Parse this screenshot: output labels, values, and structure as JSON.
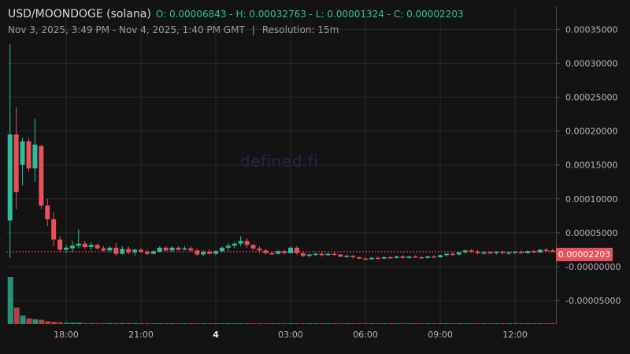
{
  "header": {
    "pair": "USD/MOONDOGE (solana)",
    "ohlc": "O: 0.00006843 - H: 0.00032763 - L: 0.00001324 - C: 0.00002203",
    "range": "Nov 3, 2025, 3:49 PM - Nov 4, 2025, 1:40 PM GMT",
    "separator": "|",
    "resolution": "Resolution: 15m"
  },
  "watermark": "defined.fi",
  "last_price_label": "0.00002203",
  "colors": {
    "up": "#2bbf9e",
    "down": "#e8505b",
    "grid": "#2a2a2a",
    "background": "#131313"
  },
  "chart_data": {
    "type": "candlestick",
    "title": "USD/MOONDOGE (solana)",
    "interval": "15m",
    "last_close": 2.203e-05,
    "ylim": [
      -8e-05,
      0.00038
    ],
    "y_ticks": [
      {
        "value": 0.00035,
        "label": "0.00035000"
      },
      {
        "value": 0.0003,
        "label": "0.00030000"
      },
      {
        "value": 0.00025,
        "label": "0.00025000"
      },
      {
        "value": 0.0002,
        "label": "0.00020000"
      },
      {
        "value": 0.00015,
        "label": "0.00015000"
      },
      {
        "value": 0.0001,
        "label": "0.00010000"
      },
      {
        "value": 5e-05,
        "label": "0.00005000"
      },
      {
        "value": 0.0,
        "label": "-0.00000000"
      },
      {
        "value": -5e-05,
        "label": "-0.00005000"
      }
    ],
    "x_ticks": [
      {
        "hour": 18,
        "label": "18:00"
      },
      {
        "hour": 21,
        "label": "21:00"
      },
      {
        "hour": 24,
        "label": "4"
      },
      {
        "hour": 27,
        "label": "03:00"
      },
      {
        "hour": 30,
        "label": "06:00"
      },
      {
        "hour": 33,
        "label": "09:00"
      },
      {
        "hour": 36,
        "label": "12:00"
      }
    ],
    "candles": [
      {
        "hour": 15.75,
        "o": 6.8e-05,
        "h": 0.000328,
        "l": 1.3e-05,
        "c": 0.000195,
        "v": 1.0
      },
      {
        "hour": 16.0,
        "o": 0.000195,
        "h": 0.000235,
        "l": 8.5e-05,
        "c": 0.00011,
        "v": 0.35
      },
      {
        "hour": 16.25,
        "o": 0.00015,
        "h": 0.00019,
        "l": 0.00012,
        "c": 0.000185,
        "v": 0.18
      },
      {
        "hour": 16.5,
        "o": 0.000185,
        "h": 0.00019,
        "l": 0.00014,
        "c": 0.000145,
        "v": 0.12
      },
      {
        "hour": 16.75,
        "o": 0.000145,
        "h": 0.000218,
        "l": 0.000125,
        "c": 0.00018,
        "v": 0.1
      },
      {
        "hour": 17.0,
        "o": 0.000178,
        "h": 0.00018,
        "l": 8.5e-05,
        "c": 9e-05,
        "v": 0.09
      },
      {
        "hour": 17.25,
        "o": 9e-05,
        "h": 0.0001,
        "l": 6e-05,
        "c": 7e-05,
        "v": 0.06
      },
      {
        "hour": 17.5,
        "o": 7e-05,
        "h": 8e-05,
        "l": 3e-05,
        "c": 4e-05,
        "v": 0.05
      },
      {
        "hour": 17.75,
        "o": 4e-05,
        "h": 4.5e-05,
        "l": 2.2e-05,
        "c": 2.5e-05,
        "v": 0.04
      },
      {
        "hour": 18.0,
        "o": 2.5e-05,
        "h": 3.2e-05,
        "l": 2e-05,
        "c": 2.8e-05,
        "v": 0.03
      },
      {
        "hour": 18.25,
        "o": 2.7e-05,
        "h": 3.8e-05,
        "l": 2.2e-05,
        "c": 3.1e-05,
        "v": 0.03
      },
      {
        "hour": 18.5,
        "o": 3.1e-05,
        "h": 5.5e-05,
        "l": 2.7e-05,
        "c": 3.4e-05,
        "v": 0.03
      },
      {
        "hour": 18.75,
        "o": 3.4e-05,
        "h": 3.8e-05,
        "l": 2.6e-05,
        "c": 2.9e-05,
        "v": 0.02
      },
      {
        "hour": 19.0,
        "o": 2.9e-05,
        "h": 3.6e-05,
        "l": 2.4e-05,
        "c": 3.2e-05,
        "v": 0.02
      },
      {
        "hour": 19.25,
        "o": 3.2e-05,
        "h": 3.4e-05,
        "l": 2.5e-05,
        "c": 2.7e-05,
        "v": 0.02
      },
      {
        "hour": 19.5,
        "o": 2.7e-05,
        "h": 3e-05,
        "l": 2.2e-05,
        "c": 2.4e-05,
        "v": 0.02
      },
      {
        "hour": 19.75,
        "o": 2.4e-05,
        "h": 3e-05,
        "l": 2.2e-05,
        "c": 2.8e-05,
        "v": 0.02
      },
      {
        "hour": 20.0,
        "o": 2.8e-05,
        "h": 3.5e-05,
        "l": 1.6e-05,
        "c": 1.9e-05,
        "v": 0.02
      },
      {
        "hour": 20.25,
        "o": 1.9e-05,
        "h": 3e-05,
        "l": 1.8e-05,
        "c": 2.6e-05,
        "v": 0.02
      },
      {
        "hour": 20.5,
        "o": 2.6e-05,
        "h": 3e-05,
        "l": 1.8e-05,
        "c": 2.1e-05,
        "v": 0.02
      },
      {
        "hour": 20.75,
        "o": 2.1e-05,
        "h": 2.7e-05,
        "l": 1.6e-05,
        "c": 2.5e-05,
        "v": 0.02
      },
      {
        "hour": 21.0,
        "o": 2.5e-05,
        "h": 2.7e-05,
        "l": 2e-05,
        "c": 2.2e-05,
        "v": 0.01
      },
      {
        "hour": 21.25,
        "o": 2.2e-05,
        "h": 2.5e-05,
        "l": 1.7e-05,
        "c": 1.9e-05,
        "v": 0.01
      },
      {
        "hour": 21.5,
        "o": 1.9e-05,
        "h": 2.4e-05,
        "l": 1.8e-05,
        "c": 2.3e-05,
        "v": 0.01
      },
      {
        "hour": 21.75,
        "o": 2.2e-05,
        "h": 3e-05,
        "l": 2.1e-05,
        "c": 2.8e-05,
        "v": 0.01
      },
      {
        "hour": 22.0,
        "o": 2.8e-05,
        "h": 3e-05,
        "l": 2.3e-05,
        "c": 2.4e-05,
        "v": 0.01
      },
      {
        "hour": 22.25,
        "o": 2.4e-05,
        "h": 3e-05,
        "l": 2.2e-05,
        "c": 2.8e-05,
        "v": 0.01
      },
      {
        "hour": 22.5,
        "o": 2.8e-05,
        "h": 3e-05,
        "l": 2.3e-05,
        "c": 2.5e-05,
        "v": 0.01
      },
      {
        "hour": 22.75,
        "o": 2.5e-05,
        "h": 3e-05,
        "l": 2.4e-05,
        "c": 2.7e-05,
        "v": 0.01
      },
      {
        "hour": 23.0,
        "o": 2.7e-05,
        "h": 3e-05,
        "l": 2.2e-05,
        "c": 2.4e-05,
        "v": 0.01
      },
      {
        "hour": 23.25,
        "o": 2.4e-05,
        "h": 2.7e-05,
        "l": 1.6e-05,
        "c": 1.8e-05,
        "v": 0.01
      },
      {
        "hour": 23.5,
        "o": 1.8e-05,
        "h": 2.4e-05,
        "l": 1.6e-05,
        "c": 2.2e-05,
        "v": 0.01
      },
      {
        "hour": 23.75,
        "o": 2.2e-05,
        "h": 2.6e-05,
        "l": 1.8e-05,
        "c": 1.9e-05,
        "v": 0.01
      },
      {
        "hour": 24.0,
        "o": 1.9e-05,
        "h": 2.5e-05,
        "l": 1.7e-05,
        "c": 2.3e-05,
        "v": 0.01
      },
      {
        "hour": 24.25,
        "o": 2.3e-05,
        "h": 3e-05,
        "l": 2.1e-05,
        "c": 2.8e-05,
        "v": 0.01
      },
      {
        "hour": 24.5,
        "o": 2.8e-05,
        "h": 3.5e-05,
        "l": 2.4e-05,
        "c": 3.1e-05,
        "v": 0.01
      },
      {
        "hour": 24.75,
        "o": 3.1e-05,
        "h": 3.6e-05,
        "l": 2.7e-05,
        "c": 3.4e-05,
        "v": 0.01
      },
      {
        "hour": 25.0,
        "o": 3.4e-05,
        "h": 4.5e-05,
        "l": 3e-05,
        "c": 3.8e-05,
        "v": 0.01
      },
      {
        "hour": 25.25,
        "o": 3.8e-05,
        "h": 4.2e-05,
        "l": 2.8e-05,
        "c": 3.2e-05,
        "v": 0.01
      },
      {
        "hour": 25.5,
        "o": 3.2e-05,
        "h": 3.4e-05,
        "l": 2.4e-05,
        "c": 2.7e-05,
        "v": 0.01
      },
      {
        "hour": 25.75,
        "o": 2.7e-05,
        "h": 3e-05,
        "l": 2e-05,
        "c": 2.4e-05,
        "v": 0.01
      },
      {
        "hour": 26.0,
        "o": 2.4e-05,
        "h": 2.6e-05,
        "l": 1.8e-05,
        "c": 2e-05,
        "v": 0.01
      },
      {
        "hour": 26.25,
        "o": 2e-05,
        "h": 2.2e-05,
        "l": 1.7e-05,
        "c": 1.9e-05,
        "v": 0.01
      },
      {
        "hour": 26.5,
        "o": 1.9e-05,
        "h": 2.5e-05,
        "l": 1.8e-05,
        "c": 2.3e-05,
        "v": 0.01
      },
      {
        "hour": 26.75,
        "o": 2.3e-05,
        "h": 2.5e-05,
        "l": 1.8e-05,
        "c": 2e-05,
        "v": 0.01
      },
      {
        "hour": 27.0,
        "o": 2e-05,
        "h": 3e-05,
        "l": 1.9e-05,
        "c": 2.8e-05,
        "v": 0.01
      },
      {
        "hour": 27.25,
        "o": 2.8e-05,
        "h": 3e-05,
        "l": 1.8e-05,
        "c": 2e-05,
        "v": 0.01
      },
      {
        "hour": 27.5,
        "o": 2e-05,
        "h": 2.2e-05,
        "l": 1.4e-05,
        "c": 1.6e-05,
        "v": 0.01
      },
      {
        "hour": 27.75,
        "o": 1.6e-05,
        "h": 1.9e-05,
        "l": 1.4e-05,
        "c": 1.8e-05,
        "v": 0.01
      },
      {
        "hour": 28.0,
        "o": 1.8e-05,
        "h": 2e-05,
        "l": 1.6e-05,
        "c": 1.9e-05,
        "v": 0.01
      },
      {
        "hour": 28.25,
        "o": 1.9e-05,
        "h": 2.1e-05,
        "l": 1.5e-05,
        "c": 1.7e-05,
        "v": 0.01
      },
      {
        "hour": 28.5,
        "o": 1.7e-05,
        "h": 2e-05,
        "l": 1.6e-05,
        "c": 1.9e-05,
        "v": 0.01
      },
      {
        "hour": 28.75,
        "o": 1.9e-05,
        "h": 2.2e-05,
        "l": 1.6e-05,
        "c": 1.8e-05,
        "v": 0.01
      },
      {
        "hour": 29.0,
        "o": 1.8e-05,
        "h": 1.9e-05,
        "l": 1.4e-05,
        "c": 1.5e-05,
        "v": 0.01
      },
      {
        "hour": 29.25,
        "o": 1.5e-05,
        "h": 1.8e-05,
        "l": 1.3e-05,
        "c": 1.6e-05,
        "v": 0.01
      },
      {
        "hour": 29.5,
        "o": 1.6e-05,
        "h": 1.7e-05,
        "l": 1.2e-05,
        "c": 1.4e-05,
        "v": 0.01
      },
      {
        "hour": 29.75,
        "o": 1.4e-05,
        "h": 1.5e-05,
        "l": 1.1e-05,
        "c": 1.2e-05,
        "v": 0.01
      },
      {
        "hour": 30.0,
        "o": 1.2e-05,
        "h": 1.4e-05,
        "l": 1e-05,
        "c": 1.1e-05,
        "v": 0.01
      },
      {
        "hour": 30.25,
        "o": 1.1e-05,
        "h": 1.4e-05,
        "l": 1e-05,
        "c": 1.3e-05,
        "v": 0.01
      },
      {
        "hour": 30.5,
        "o": 1.3e-05,
        "h": 1.5e-05,
        "l": 1.1e-05,
        "c": 1.2e-05,
        "v": 0.01
      },
      {
        "hour": 30.75,
        "o": 1.2e-05,
        "h": 1.5e-05,
        "l": 1.1e-05,
        "c": 1.4e-05,
        "v": 0.01
      },
      {
        "hour": 31.0,
        "o": 1.4e-05,
        "h": 1.6e-05,
        "l": 1.2e-05,
        "c": 1.3e-05,
        "v": 0.01
      },
      {
        "hour": 31.25,
        "o": 1.3e-05,
        "h": 1.6e-05,
        "l": 1.2e-05,
        "c": 1.5e-05,
        "v": 0.01
      },
      {
        "hour": 31.5,
        "o": 1.5e-05,
        "h": 1.7e-05,
        "l": 1.2e-05,
        "c": 1.3e-05,
        "v": 0.01
      },
      {
        "hour": 31.75,
        "o": 1.3e-05,
        "h": 1.6e-05,
        "l": 1.2e-05,
        "c": 1.5e-05,
        "v": 0.01
      },
      {
        "hour": 32.0,
        "o": 1.5e-05,
        "h": 1.7e-05,
        "l": 1.3e-05,
        "c": 1.4e-05,
        "v": 0.01
      },
      {
        "hour": 32.25,
        "o": 1.4e-05,
        "h": 1.6e-05,
        "l": 1.2e-05,
        "c": 1.3e-05,
        "v": 0.01
      },
      {
        "hour": 32.5,
        "o": 1.3e-05,
        "h": 1.6e-05,
        "l": 1.2e-05,
        "c": 1.5e-05,
        "v": 0.01
      },
      {
        "hour": 32.75,
        "o": 1.5e-05,
        "h": 1.7e-05,
        "l": 1.3e-05,
        "c": 1.4e-05,
        "v": 0.01
      },
      {
        "hour": 33.0,
        "o": 1.4e-05,
        "h": 1.8e-05,
        "l": 1.3e-05,
        "c": 1.7e-05,
        "v": 0.01
      },
      {
        "hour": 33.25,
        "o": 1.7e-05,
        "h": 2e-05,
        "l": 1.5e-05,
        "c": 1.9e-05,
        "v": 0.01
      },
      {
        "hour": 33.5,
        "o": 1.9e-05,
        "h": 2.1e-05,
        "l": 1.6e-05,
        "c": 1.8e-05,
        "v": 0.01
      },
      {
        "hour": 33.75,
        "o": 1.8e-05,
        "h": 2.2e-05,
        "l": 1.7e-05,
        "c": 2.1e-05,
        "v": 0.01
      },
      {
        "hour": 34.0,
        "o": 2.1e-05,
        "h": 2.5e-05,
        "l": 1.9e-05,
        "c": 2.4e-05,
        "v": 0.01
      },
      {
        "hour": 34.25,
        "o": 2.4e-05,
        "h": 2.6e-05,
        "l": 2e-05,
        "c": 2.2e-05,
        "v": 0.01
      },
      {
        "hour": 34.5,
        "o": 2.2e-05,
        "h": 2.5e-05,
        "l": 1.8e-05,
        "c": 2e-05,
        "v": 0.01
      },
      {
        "hour": 34.75,
        "o": 2e-05,
        "h": 2.3e-05,
        "l": 1.8e-05,
        "c": 2.1e-05,
        "v": 0.01
      },
      {
        "hour": 35.0,
        "o": 2.1e-05,
        "h": 2.3e-05,
        "l": 1.9e-05,
        "c": 2e-05,
        "v": 0.01
      },
      {
        "hour": 35.25,
        "o": 2e-05,
        "h": 2.3e-05,
        "l": 1.8e-05,
        "c": 2.2e-05,
        "v": 0.01
      },
      {
        "hour": 35.5,
        "o": 2.2e-05,
        "h": 2.4e-05,
        "l": 1.9e-05,
        "c": 2e-05,
        "v": 0.01
      },
      {
        "hour": 35.75,
        "o": 2e-05,
        "h": 2.2e-05,
        "l": 1.8e-05,
        "c": 2.1e-05,
        "v": 0.01
      },
      {
        "hour": 36.0,
        "o": 2.1e-05,
        "h": 2.3e-05,
        "l": 1.9e-05,
        "c": 2.2e-05,
        "v": 0.01
      },
      {
        "hour": 36.25,
        "o": 2.2e-05,
        "h": 2.4e-05,
        "l": 1.9e-05,
        "c": 2e-05,
        "v": 0.01
      },
      {
        "hour": 36.5,
        "o": 2e-05,
        "h": 2.4e-05,
        "l": 1.9e-05,
        "c": 2.3e-05,
        "v": 0.01
      },
      {
        "hour": 36.75,
        "o": 2.3e-05,
        "h": 2.5e-05,
        "l": 2e-05,
        "c": 2.1e-05,
        "v": 0.01
      },
      {
        "hour": 37.0,
        "o": 2.1e-05,
        "h": 2.6e-05,
        "l": 2e-05,
        "c": 2.5e-05,
        "v": 0.01
      },
      {
        "hour": 37.25,
        "o": 2.5e-05,
        "h": 2.8e-05,
        "l": 2.2e-05,
        "c": 2.4e-05,
        "v": 0.01
      },
      {
        "hour": 37.5,
        "o": 2.4e-05,
        "h": 2.6e-05,
        "l": 2.1e-05,
        "c": 2.2e-05,
        "v": 0.01
      }
    ]
  }
}
